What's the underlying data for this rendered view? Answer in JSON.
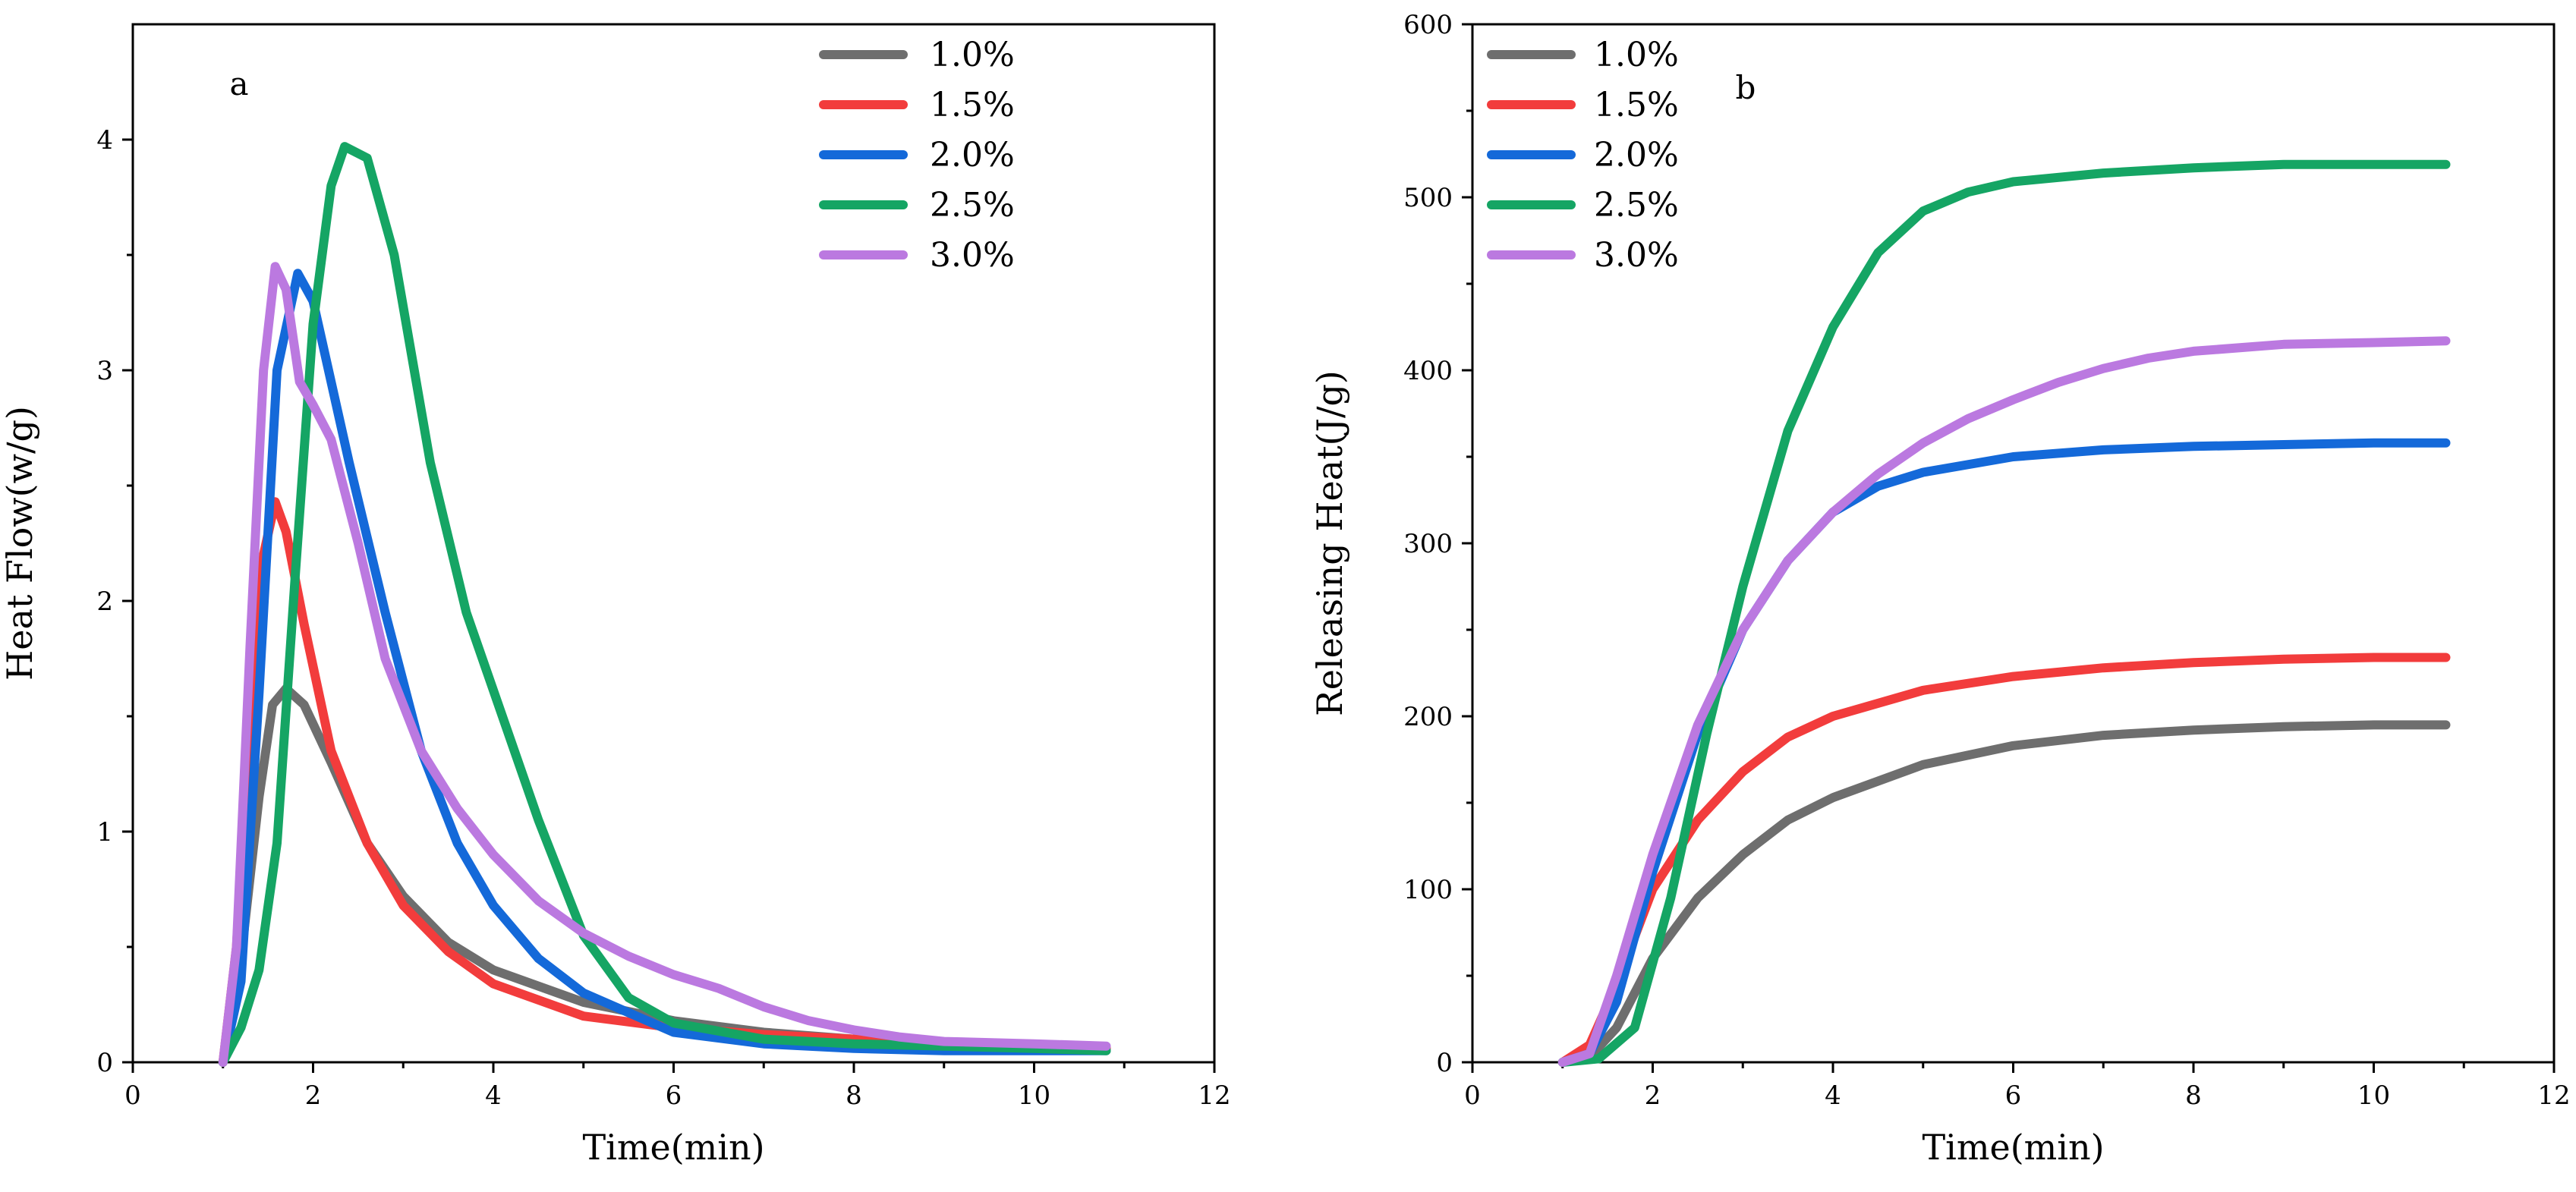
{
  "chart_data": [
    {
      "type": "line",
      "panel_label": "a",
      "xlabel": "Time(min)",
      "ylabel": "Heat Flow(w/g)",
      "xlim": [
        0,
        12
      ],
      "ylim": [
        0,
        4.5
      ],
      "xticks": [
        0,
        2,
        4,
        6,
        8,
        10,
        12
      ],
      "yticks": [
        0,
        1,
        2,
        3,
        4
      ],
      "legend_position": "top-right",
      "series": [
        {
          "name": "1.0%",
          "color": "#6e6e6e",
          "points": [
            [
              1.0,
              0
            ],
            [
              1.2,
              0.45
            ],
            [
              1.4,
              1.15
            ],
            [
              1.55,
              1.55
            ],
            [
              1.7,
              1.62
            ],
            [
              1.9,
              1.55
            ],
            [
              2.2,
              1.3
            ],
            [
              2.6,
              0.95
            ],
            [
              3.0,
              0.72
            ],
            [
              3.5,
              0.52
            ],
            [
              4.0,
              0.4
            ],
            [
              5.0,
              0.26
            ],
            [
              6.0,
              0.18
            ],
            [
              7.0,
              0.13
            ],
            [
              8.0,
              0.1
            ],
            [
              9.0,
              0.08
            ],
            [
              10.0,
              0.07
            ],
            [
              10.8,
              0.06
            ]
          ]
        },
        {
          "name": "1.5%",
          "color": "#f23c3c",
          "points": [
            [
              1.0,
              0
            ],
            [
              1.15,
              0.5
            ],
            [
              1.3,
              1.5
            ],
            [
              1.45,
              2.2
            ],
            [
              1.58,
              2.43
            ],
            [
              1.7,
              2.3
            ],
            [
              1.9,
              1.9
            ],
            [
              2.2,
              1.35
            ],
            [
              2.6,
              0.95
            ],
            [
              3.0,
              0.68
            ],
            [
              3.5,
              0.48
            ],
            [
              4.0,
              0.34
            ],
            [
              5.0,
              0.2
            ],
            [
              6.0,
              0.15
            ],
            [
              7.0,
              0.12
            ],
            [
              8.0,
              0.1
            ],
            [
              9.0,
              0.08
            ],
            [
              10.0,
              0.07
            ],
            [
              10.8,
              0.06
            ]
          ]
        },
        {
          "name": "2.0%",
          "color": "#1469d9",
          "points": [
            [
              1.0,
              0
            ],
            [
              1.2,
              0.35
            ],
            [
              1.4,
              1.6
            ],
            [
              1.6,
              3.0
            ],
            [
              1.83,
              3.42
            ],
            [
              2.0,
              3.3
            ],
            [
              2.4,
              2.6
            ],
            [
              2.8,
              1.95
            ],
            [
              3.2,
              1.35
            ],
            [
              3.6,
              0.95
            ],
            [
              4.0,
              0.68
            ],
            [
              4.5,
              0.45
            ],
            [
              5.0,
              0.3
            ],
            [
              6.0,
              0.13
            ],
            [
              7.0,
              0.08
            ],
            [
              8.0,
              0.06
            ],
            [
              9.0,
              0.05
            ],
            [
              10.0,
              0.05
            ],
            [
              10.8,
              0.05
            ]
          ]
        },
        {
          "name": "2.5%",
          "color": "#15a564",
          "points": [
            [
              1.0,
              0
            ],
            [
              1.2,
              0.15
            ],
            [
              1.4,
              0.4
            ],
            [
              1.6,
              0.95
            ],
            [
              1.8,
              2.1
            ],
            [
              2.0,
              3.2
            ],
            [
              2.2,
              3.8
            ],
            [
              2.35,
              3.97
            ],
            [
              2.6,
              3.92
            ],
            [
              2.9,
              3.5
            ],
            [
              3.3,
              2.6
            ],
            [
              3.7,
              1.95
            ],
            [
              4.1,
              1.5
            ],
            [
              4.5,
              1.05
            ],
            [
              5.0,
              0.55
            ],
            [
              5.5,
              0.28
            ],
            [
              6.0,
              0.17
            ],
            [
              7.0,
              0.1
            ],
            [
              8.0,
              0.08
            ],
            [
              9.0,
              0.07
            ],
            [
              10.0,
              0.06
            ],
            [
              10.8,
              0.05
            ]
          ]
        },
        {
          "name": "3.0%",
          "color": "#bb79e0",
          "points": [
            [
              1.0,
              0
            ],
            [
              1.15,
              0.5
            ],
            [
              1.3,
              1.8
            ],
            [
              1.45,
              3.0
            ],
            [
              1.58,
              3.45
            ],
            [
              1.7,
              3.35
            ],
            [
              1.85,
              2.95
            ],
            [
              2.0,
              2.85
            ],
            [
              2.2,
              2.7
            ],
            [
              2.5,
              2.25
            ],
            [
              2.8,
              1.75
            ],
            [
              3.2,
              1.35
            ],
            [
              3.6,
              1.1
            ],
            [
              4.0,
              0.9
            ],
            [
              4.5,
              0.7
            ],
            [
              5.0,
              0.56
            ],
            [
              5.5,
              0.46
            ],
            [
              6.0,
              0.38
            ],
            [
              6.5,
              0.32
            ],
            [
              7.0,
              0.24
            ],
            [
              7.5,
              0.18
            ],
            [
              8.0,
              0.14
            ],
            [
              8.5,
              0.11
            ],
            [
              9.0,
              0.09
            ],
            [
              10.0,
              0.08
            ],
            [
              10.8,
              0.07
            ]
          ]
        }
      ]
    },
    {
      "type": "line",
      "panel_label": "b",
      "xlabel": "Time(min)",
      "ylabel": "Releasing Heat(J/g)",
      "xlim": [
        0,
        12
      ],
      "ylim": [
        0,
        600
      ],
      "xticks": [
        0,
        2,
        4,
        6,
        8,
        10,
        12
      ],
      "yticks": [
        0,
        100,
        200,
        300,
        400,
        500,
        600
      ],
      "legend_position": "top-left",
      "series": [
        {
          "name": "1.0%",
          "color": "#6e6e6e",
          "points": [
            [
              1.0,
              0
            ],
            [
              1.3,
              3
            ],
            [
              1.6,
              20
            ],
            [
              2.0,
              60
            ],
            [
              2.5,
              95
            ],
            [
              3.0,
              120
            ],
            [
              3.5,
              140
            ],
            [
              4.0,
              153
            ],
            [
              5.0,
              172
            ],
            [
              6.0,
              183
            ],
            [
              7.0,
              189
            ],
            [
              8.0,
              192
            ],
            [
              9.0,
              194
            ],
            [
              10.0,
              195
            ],
            [
              10.8,
              195
            ]
          ]
        },
        {
          "name": "1.5%",
          "color": "#f23c3c",
          "points": [
            [
              1.0,
              0
            ],
            [
              1.3,
              10
            ],
            [
              1.6,
              45
            ],
            [
              2.0,
              100
            ],
            [
              2.5,
              140
            ],
            [
              3.0,
              168
            ],
            [
              3.5,
              188
            ],
            [
              4.0,
              200
            ],
            [
              5.0,
              215
            ],
            [
              6.0,
              223
            ],
            [
              7.0,
              228
            ],
            [
              8.0,
              231
            ],
            [
              9.0,
              233
            ],
            [
              10.0,
              234
            ],
            [
              10.8,
              234
            ]
          ]
        },
        {
          "name": "2.0%",
          "color": "#1469d9",
          "points": [
            [
              1.0,
              0
            ],
            [
              1.3,
              5
            ],
            [
              1.6,
              35
            ],
            [
              2.0,
              110
            ],
            [
              2.5,
              190
            ],
            [
              3.0,
              250
            ],
            [
              3.5,
              290
            ],
            [
              4.0,
              318
            ],
            [
              4.5,
              333
            ],
            [
              5.0,
              341
            ],
            [
              6.0,
              350
            ],
            [
              7.0,
              354
            ],
            [
              8.0,
              356
            ],
            [
              9.0,
              357
            ],
            [
              10.0,
              358
            ],
            [
              10.8,
              358
            ]
          ]
        },
        {
          "name": "2.5%",
          "color": "#15a564",
          "points": [
            [
              1.0,
              0
            ],
            [
              1.4,
              2
            ],
            [
              1.8,
              20
            ],
            [
              2.2,
              95
            ],
            [
              2.6,
              190
            ],
            [
              3.0,
              275
            ],
            [
              3.5,
              365
            ],
            [
              4.0,
              425
            ],
            [
              4.5,
              468
            ],
            [
              5.0,
              492
            ],
            [
              5.5,
              503
            ],
            [
              6.0,
              509
            ],
            [
              7.0,
              514
            ],
            [
              8.0,
              517
            ],
            [
              9.0,
              519
            ],
            [
              10.0,
              519
            ],
            [
              10.8,
              519
            ]
          ]
        },
        {
          "name": "3.0%",
          "color": "#bb79e0",
          "points": [
            [
              1.0,
              0
            ],
            [
              1.3,
              5
            ],
            [
              1.6,
              50
            ],
            [
              2.0,
              120
            ],
            [
              2.5,
              195
            ],
            [
              3.0,
              250
            ],
            [
              3.5,
              290
            ],
            [
              4.0,
              318
            ],
            [
              4.5,
              340
            ],
            [
              5.0,
              358
            ],
            [
              5.5,
              372
            ],
            [
              6.0,
              383
            ],
            [
              6.5,
              393
            ],
            [
              7.0,
              401
            ],
            [
              7.5,
              407
            ],
            [
              8.0,
              411
            ],
            [
              8.5,
              413
            ],
            [
              9.0,
              415
            ],
            [
              10.0,
              416
            ],
            [
              10.8,
              417
            ]
          ]
        }
      ]
    }
  ]
}
